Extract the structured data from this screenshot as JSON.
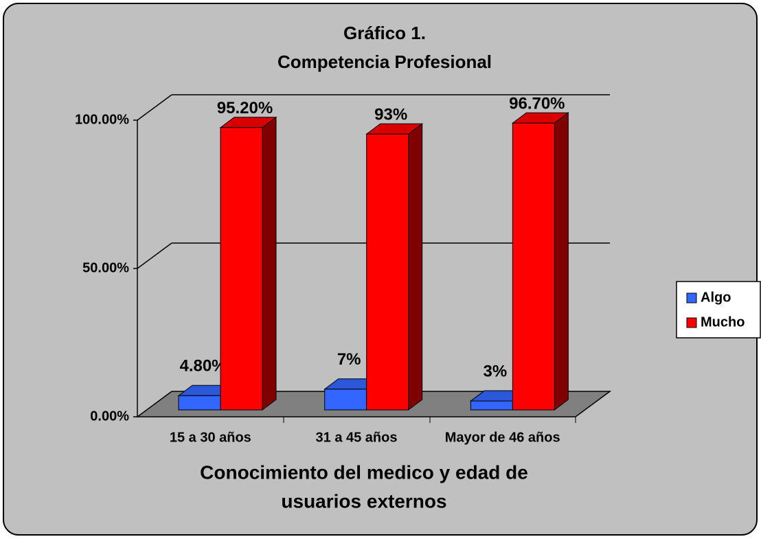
{
  "chart_data": {
    "type": "bar3d",
    "title": [
      "Gráfico 1.",
      "Competencia Profesional"
    ],
    "x_label": [
      "Conocimiento del medico y edad de",
      "usuarios externos"
    ],
    "categories": [
      "15 a 30 años",
      "31 a 45 años",
      "Mayor de 46 años"
    ],
    "series": [
      {
        "name": "Algo",
        "color": "#3366ff",
        "values": [
          4.8,
          7,
          3
        ],
        "value_labels": [
          "4.80%",
          "7%",
          "3%"
        ]
      },
      {
        "name": "Mucho",
        "color": "#ff0000",
        "values": [
          95.2,
          93,
          96.7
        ],
        "value_labels": [
          "95.20%",
          "93%",
          "96.70%"
        ]
      }
    ],
    "ylim": [
      0,
      100
    ],
    "yticks": [
      {
        "value": 0,
        "label": "0.00%"
      },
      {
        "value": 50,
        "label": "50.00%"
      },
      {
        "value": 100,
        "label": "100.00%"
      }
    ],
    "grid": true,
    "legend": "right"
  }
}
